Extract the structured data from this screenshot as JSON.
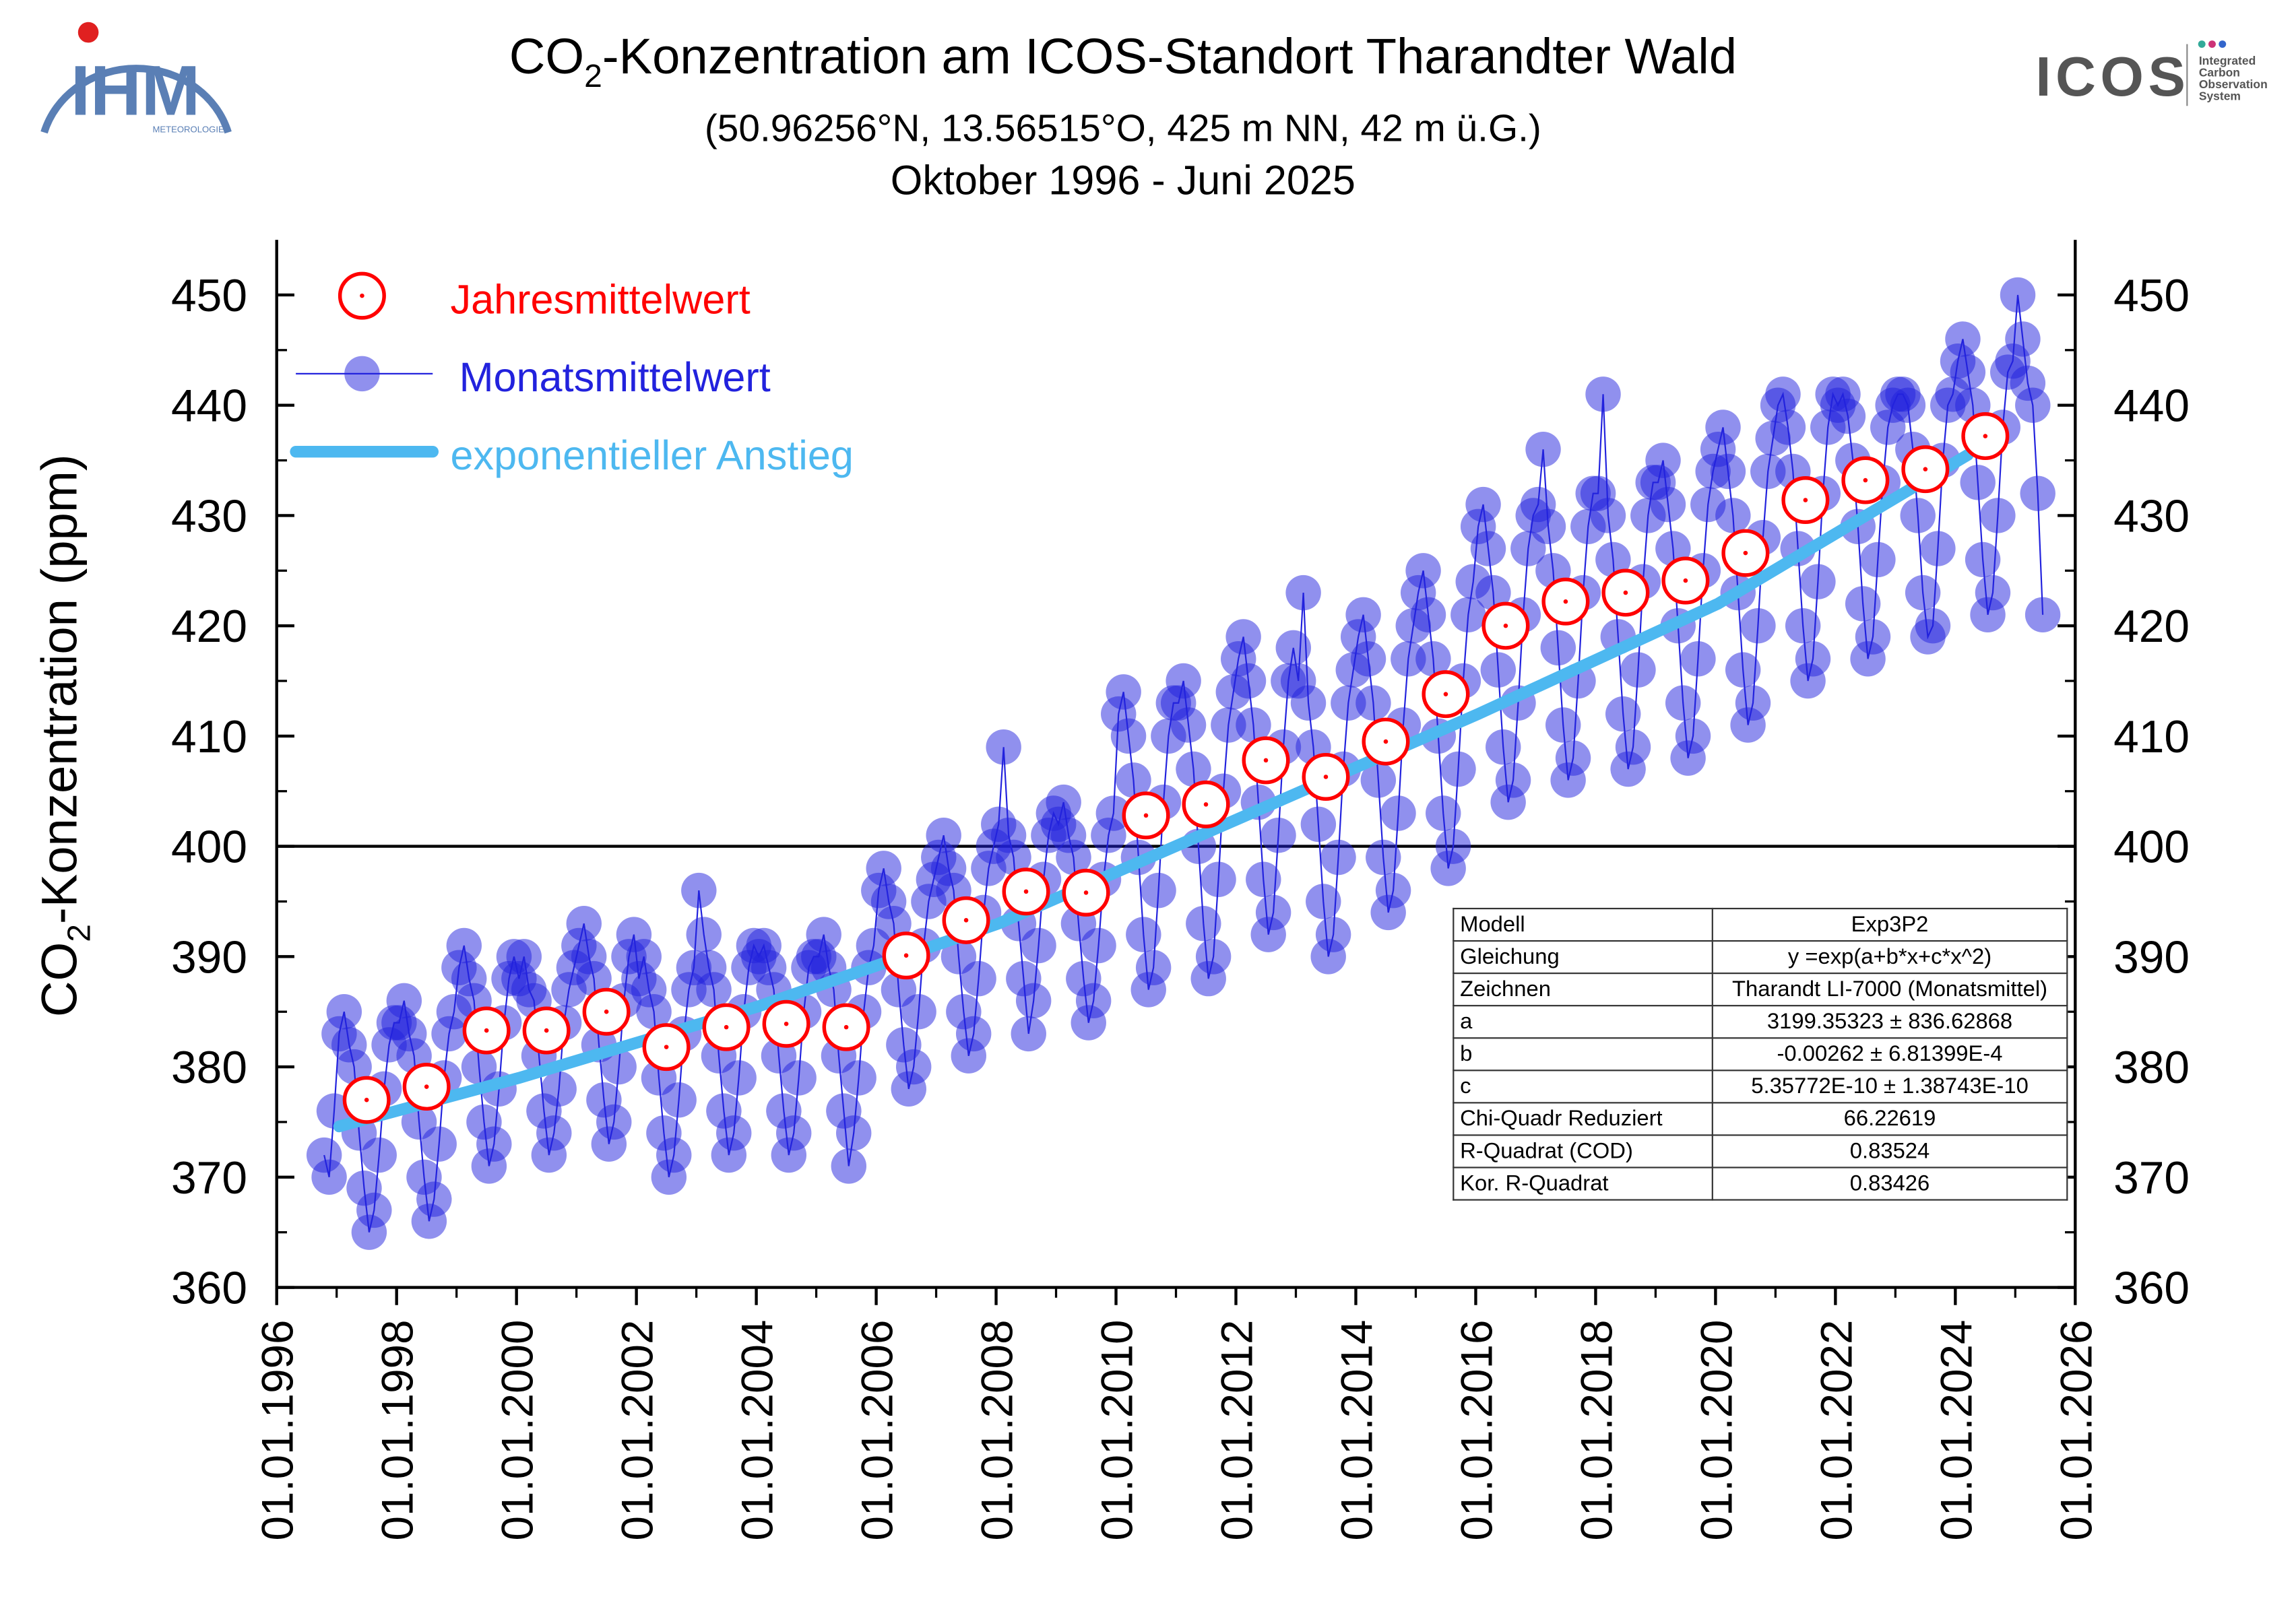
{
  "logos": {
    "ihm": {
      "text": "IHM",
      "sub": "METEOROLOGIE"
    },
    "icos": {
      "text": "ICOS",
      "lines": [
        "Integrated",
        "Carbon",
        "Observation",
        "System"
      ]
    }
  },
  "chart_data": {
    "type": "line",
    "title": [
      "CO",
      "2",
      "-Konzentration am ICOS-Standort Tharandter Wald"
    ],
    "subtitle": [
      "(50.96256°N, 13.56515°O, 425 m NN, 42 m ü.G.)",
      "Oktober 1996 - Juni 2025"
    ],
    "ylabel": [
      "CO",
      "2",
      "-Konzentration (ppm)"
    ],
    "legend": "upper left",
    "xlim": [
      "1996-01-01",
      "2026-01-01"
    ],
    "xticks": [
      {
        "value": "1996-01-01",
        "label": "01.01.1996"
      },
      {
        "value": "1998-01-01",
        "label": "01.01.1998"
      },
      {
        "value": "2000-01-01",
        "label": "01.01.2000"
      },
      {
        "value": "2002-01-01",
        "label": "01.01.2002"
      },
      {
        "value": "2004-01-01",
        "label": "01.01.2004"
      },
      {
        "value": "2006-01-01",
        "label": "01.01.2006"
      },
      {
        "value": "2008-01-01",
        "label": "01.01.2008"
      },
      {
        "value": "2010-01-01",
        "label": "01.01.2010"
      },
      {
        "value": "2012-01-01",
        "label": "01.01.2012"
      },
      {
        "value": "2014-01-01",
        "label": "01.01.2014"
      },
      {
        "value": "2016-01-01",
        "label": "01.01.2016"
      },
      {
        "value": "2018-01-01",
        "label": "01.01.2018"
      },
      {
        "value": "2020-01-01",
        "label": "01.01.2020"
      },
      {
        "value": "2022-01-01",
        "label": "01.01.2022"
      },
      {
        "value": "2024-01-01",
        "label": "01.01.2024"
      },
      {
        "value": "2026-01-01",
        "label": "01.01.2026"
      }
    ],
    "ylim": [
      360,
      455
    ],
    "yticks": [
      360,
      370,
      380,
      390,
      400,
      410,
      420,
      430,
      440,
      450
    ],
    "hline": 400,
    "series": [
      {
        "name": "Jahresmittelwert",
        "type": "open_marker",
        "color": "#ff0000",
        "x": [
          "1997",
          "1998",
          "1999",
          "2000",
          "2001",
          "2002",
          "2003",
          "2004",
          "2005",
          "2006",
          "2007",
          "2008",
          "2009",
          "2010",
          "2011",
          "2012",
          "2013",
          "2014",
          "2015",
          "2016",
          "2017",
          "2018",
          "2019",
          "2020",
          "2021",
          "2022",
          "2023",
          "2024"
        ],
        "values": [
          377,
          378.2,
          383.3,
          383.3,
          385,
          381.8,
          383.6,
          383.9,
          383.6,
          390.1,
          393.3,
          395.9,
          395.8,
          402.8,
          403.8,
          407.8,
          406.3,
          409.5,
          413.8,
          420,
          422.2,
          423,
          424.1,
          426.6,
          431.4,
          433.2,
          434.2,
          437.2
        ]
      },
      {
        "name": "Monatsmittelwert",
        "type": "line_marker",
        "color": "#2222dd",
        "x": [
          "1996-10",
          "1996-11",
          "1996-12",
          "1997-01",
          "1997-02",
          "1997-03",
          "1997-04",
          "1997-05",
          "1997-06",
          "1997-07",
          "1997-08",
          "1997-09",
          "1997-10",
          "1997-11",
          "1997-12",
          "1998-01",
          "1998-02",
          "1998-03",
          "1998-04",
          "1998-05",
          "1998-06",
          "1998-07",
          "1998-08",
          "1998-09",
          "1998-10",
          "1998-11",
          "1998-12",
          "1999-01",
          "1999-02",
          "1999-03",
          "1999-04",
          "1999-05",
          "1999-06",
          "1999-07",
          "1999-08",
          "1999-09",
          "1999-10",
          "1999-11",
          "1999-12",
          "2000-01",
          "2000-02",
          "2000-03",
          "2000-04",
          "2000-05",
          "2000-06",
          "2000-07",
          "2000-08",
          "2000-09",
          "2000-10",
          "2000-11",
          "2000-12",
          "2001-01",
          "2001-02",
          "2001-03",
          "2001-04",
          "2001-05",
          "2001-06",
          "2001-07",
          "2001-08",
          "2001-09",
          "2001-10",
          "2001-11",
          "2001-12",
          "2002-01",
          "2002-02",
          "2002-03",
          "2002-04",
          "2002-05",
          "2002-06",
          "2002-07",
          "2002-08",
          "2002-09",
          "2002-10",
          "2002-11",
          "2002-12",
          "2003-01",
          "2003-02",
          "2003-03",
          "2003-04",
          "2003-05",
          "2003-06",
          "2003-07",
          "2003-08",
          "2003-09",
          "2003-10",
          "2003-11",
          "2003-12",
          "2004-01",
          "2004-02",
          "2004-03",
          "2004-04",
          "2004-05",
          "2004-06",
          "2004-07",
          "2004-08",
          "2004-09",
          "2004-10",
          "2004-11",
          "2004-12",
          "2005-01",
          "2005-02",
          "2005-03",
          "2005-04",
          "2005-05",
          "2005-06",
          "2005-07",
          "2005-08",
          "2005-09",
          "2005-10",
          "2005-11",
          "2005-12",
          "2006-01",
          "2006-02",
          "2006-03",
          "2006-04",
          "2006-05",
          "2006-06",
          "2006-07",
          "2006-08",
          "2006-09",
          "2006-10",
          "2006-11",
          "2006-12",
          "2007-01",
          "2007-02",
          "2007-03",
          "2007-04",
          "2007-05",
          "2007-06",
          "2007-07",
          "2007-08",
          "2007-09",
          "2007-10",
          "2007-11",
          "2007-12",
          "2008-01",
          "2008-02",
          "2008-03",
          "2008-04",
          "2008-05",
          "2008-06",
          "2008-07",
          "2008-08",
          "2008-09",
          "2008-10",
          "2008-11",
          "2008-12",
          "2009-01",
          "2009-02",
          "2009-03",
          "2009-04",
          "2009-05",
          "2009-06",
          "2009-07",
          "2009-08",
          "2009-09",
          "2009-10",
          "2009-11",
          "2009-12",
          "2010-01",
          "2010-02",
          "2010-03",
          "2010-04",
          "2010-05",
          "2010-06",
          "2010-07",
          "2010-08",
          "2010-09",
          "2010-10",
          "2010-11",
          "2010-12",
          "2011-01",
          "2011-02",
          "2011-03",
          "2011-04",
          "2011-05",
          "2011-06",
          "2011-07",
          "2011-08",
          "2011-09",
          "2011-10",
          "2011-11",
          "2011-12",
          "2012-01",
          "2012-02",
          "2012-03",
          "2012-04",
          "2012-05",
          "2012-06",
          "2012-07",
          "2012-08",
          "2012-09",
          "2012-10",
          "2012-11",
          "2012-12",
          "2013-01",
          "2013-02",
          "2013-03",
          "2013-04",
          "2013-05",
          "2013-06",
          "2013-07",
          "2013-08",
          "2013-09",
          "2013-10",
          "2013-11",
          "2013-12",
          "2014-01",
          "2014-02",
          "2014-03",
          "2014-04",
          "2014-05",
          "2014-06",
          "2014-07",
          "2014-08",
          "2014-09",
          "2014-10",
          "2014-11",
          "2014-12",
          "2015-01",
          "2015-02",
          "2015-03",
          "2015-04",
          "2015-05",
          "2015-06",
          "2015-07",
          "2015-08",
          "2015-09",
          "2015-10",
          "2015-11",
          "2015-12",
          "2016-01",
          "2016-02",
          "2016-03",
          "2016-04",
          "2016-05",
          "2016-06",
          "2016-07",
          "2016-08",
          "2016-09",
          "2016-10",
          "2016-11",
          "2016-12",
          "2017-01",
          "2017-02",
          "2017-03",
          "2017-04",
          "2017-05",
          "2017-06",
          "2017-07",
          "2017-08",
          "2017-09",
          "2017-10",
          "2017-11",
          "2017-12",
          "2018-01",
          "2018-02",
          "2018-03",
          "2018-04",
          "2018-05",
          "2018-06",
          "2018-07",
          "2018-08",
          "2018-09",
          "2018-10",
          "2018-11",
          "2018-12",
          "2019-01",
          "2019-02",
          "2019-03",
          "2019-04",
          "2019-05",
          "2019-06",
          "2019-07",
          "2019-08",
          "2019-09",
          "2019-10",
          "2019-11",
          "2019-12",
          "2020-01",
          "2020-02",
          "2020-03",
          "2020-04",
          "2020-05",
          "2020-06",
          "2020-07",
          "2020-08",
          "2020-09",
          "2020-10",
          "2020-11",
          "2020-12",
          "2021-01",
          "2021-02",
          "2021-03",
          "2021-04",
          "2021-05",
          "2021-06",
          "2021-07",
          "2021-08",
          "2021-09",
          "2021-10",
          "2021-11",
          "2021-12",
          "2022-01",
          "2022-02",
          "2022-03",
          "2022-04",
          "2022-05",
          "2022-06",
          "2022-07",
          "2022-08",
          "2022-09",
          "2022-10",
          "2022-11",
          "2022-12",
          "2023-01",
          "2023-02",
          "2023-03",
          "2023-04",
          "2023-05",
          "2023-06",
          "2023-07",
          "2023-08",
          "2023-09",
          "2023-10",
          "2023-11",
          "2023-12",
          "2024-01",
          "2024-02",
          "2024-03",
          "2024-04",
          "2024-05",
          "2024-06",
          "2024-07",
          "2024-08",
          "2024-09",
          "2024-10",
          "2024-11",
          "2024-12",
          "2025-01",
          "2025-02",
          "2025-03",
          "2025-04",
          "2025-05",
          "2025-06"
        ],
        "values": [
          372,
          370,
          376,
          383,
          385,
          382,
          380,
          374,
          369,
          365,
          367,
          372,
          378,
          382,
          384,
          384,
          386,
          383,
          381,
          375,
          370,
          366,
          368,
          373,
          379,
          383,
          385,
          389,
          391,
          388,
          386,
          380,
          375,
          371,
          373,
          378,
          384,
          388,
          390,
          388,
          390,
          387,
          386,
          381,
          376,
          372,
          374,
          378,
          384,
          387,
          389,
          391,
          393,
          390,
          388,
          382,
          377,
          373,
          375,
          380,
          386,
          390,
          392,
          388,
          390,
          387,
          385,
          379,
          374,
          370,
          372,
          377,
          383,
          387,
          389,
          396,
          392,
          389,
          387,
          381,
          376,
          372,
          374,
          379,
          385,
          389,
          391,
          390,
          391,
          389,
          387,
          381,
          376,
          372,
          374,
          379,
          385,
          389,
          390,
          390,
          392,
          389,
          387,
          381,
          376,
          371,
          374,
          379,
          385,
          389,
          391,
          396,
          398,
          395,
          393,
          387,
          382,
          378,
          380,
          385,
          391,
          395,
          397,
          399,
          401,
          398,
          396,
          390,
          385,
          381,
          383,
          388,
          394,
          398,
          400,
          402,
          409,
          401,
          399,
          393,
          388,
          383,
          386,
          391,
          397,
          401,
          403,
          402,
          404,
          401,
          399,
          393,
          388,
          384,
          386,
          391,
          397,
          401,
          403,
          412,
          414,
          410,
          406,
          399,
          392,
          387,
          389,
          396,
          404,
          410,
          413,
          413,
          415,
          411,
          407,
          400,
          393,
          388,
          390,
          397,
          405,
          411,
          414,
          417,
          419,
          415,
          411,
          404,
          397,
          392,
          394,
          401,
          409,
          415,
          418,
          415,
          423,
          413,
          409,
          402,
          395,
          390,
          392,
          399,
          407,
          413,
          416,
          419,
          421,
          417,
          413,
          406,
          399,
          394,
          396,
          403,
          411,
          417,
          420,
          423,
          425,
          421,
          417,
          410,
          403,
          398,
          400,
          407,
          415,
          421,
          424,
          429,
          431,
          427,
          423,
          416,
          409,
          404,
          406,
          413,
          421,
          427,
          430,
          431,
          436,
          429,
          425,
          418,
          411,
          406,
          408,
          415,
          423,
          429,
          432,
          432,
          441,
          430,
          426,
          419,
          412,
          407,
          409,
          416,
          424,
          430,
          433,
          433,
          435,
          431,
          427,
          420,
          413,
          408,
          410,
          417,
          425,
          431,
          434,
          436,
          438,
          434,
          430,
          423,
          416,
          411,
          413,
          420,
          428,
          434,
          437,
          440,
          441,
          438,
          434,
          427,
          420,
          415,
          417,
          424,
          432,
          438,
          441,
          440,
          441,
          439,
          435,
          429,
          422,
          417,
          419,
          426,
          433,
          438,
          440,
          441,
          441,
          440,
          436,
          430,
          423,
          419,
          420,
          427,
          435,
          440,
          441,
          444,
          446,
          443,
          440,
          433,
          426,
          421,
          423,
          430,
          438,
          443,
          444,
          450,
          446,
          442,
          440,
          432,
          421
        ]
      },
      {
        "name": "exponentieller Anstieg",
        "type": "line",
        "color": "#4db8f0",
        "x": [
          "1997-01",
          "2000-01",
          "2004-01",
          "2008-01",
          "2012-01",
          "2016-01",
          "2020-01",
          "2024-03"
        ],
        "values": [
          374.6,
          379,
          385.5,
          393,
          402.5,
          412,
          422,
          435.5
        ]
      }
    ],
    "fit_table": [
      [
        "Modell",
        "Exp3P2"
      ],
      [
        "Gleichung",
        "y =exp(a+b*x+c*x^2)"
      ],
      [
        "Zeichnen",
        "Tharandt LI-7000 (Monatsmittel)"
      ],
      [
        "a",
        "3199.35323 ± 836.62868"
      ],
      [
        "b",
        "-0.00262 ± 6.81399E-4"
      ],
      [
        "c",
        "5.35772E-10 ± 1.38743E-10"
      ],
      [
        "Chi-Quadr Reduziert",
        "66.22619"
      ],
      [
        "R-Quadrat (COD)",
        "0.83524"
      ],
      [
        "Kor. R-Quadrat",
        "0.83426"
      ]
    ]
  }
}
